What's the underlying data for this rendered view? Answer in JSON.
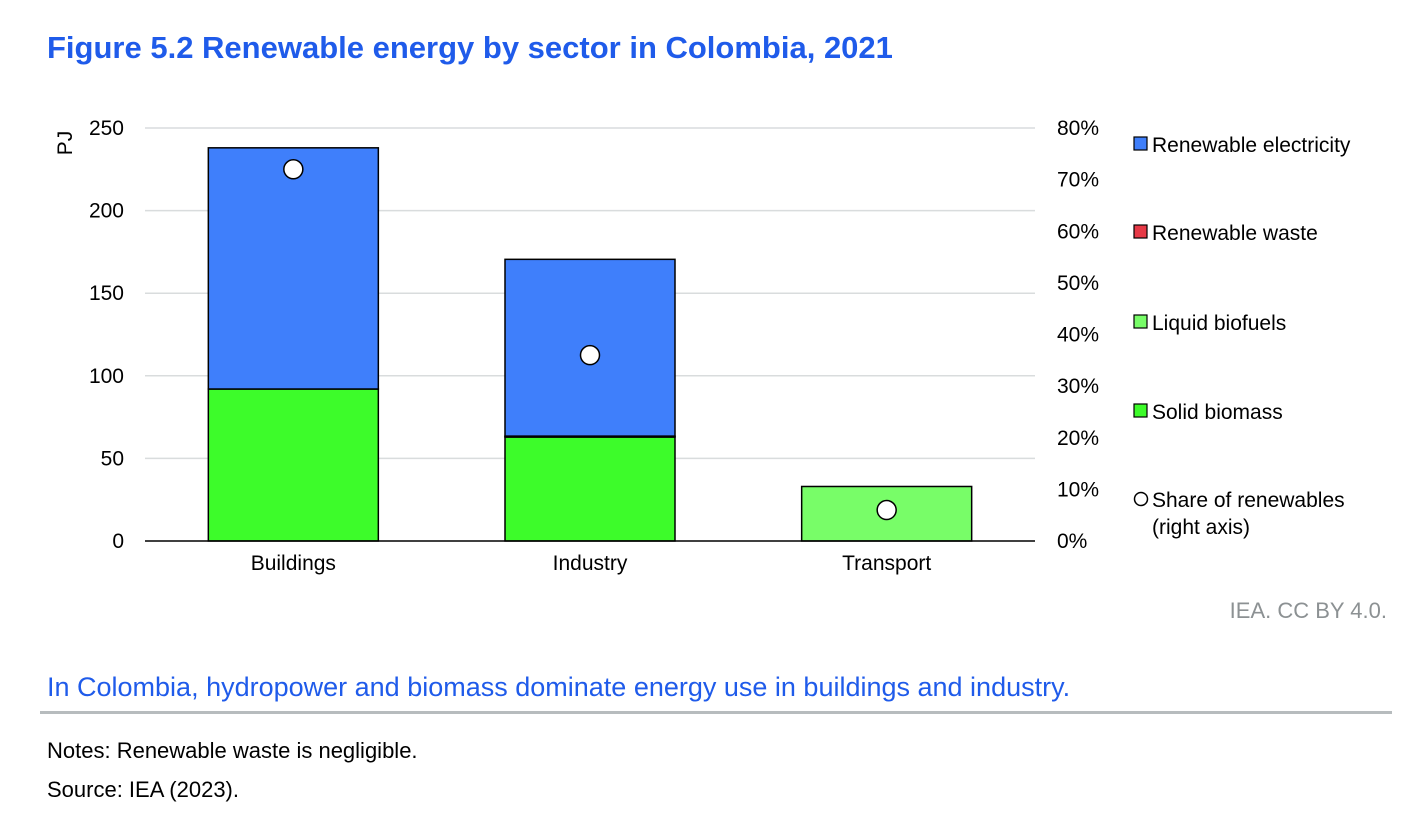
{
  "header": {
    "title": "Figure 5.2 Renewable energy by sector in Colombia, 2021"
  },
  "chart_data": {
    "type": "bar",
    "stacked": true,
    "categories": [
      "Buildings",
      "Industry",
      "Transport"
    ],
    "series": [
      {
        "name": "Solid biomass",
        "values": [
          92,
          63,
          0
        ],
        "color": "#3dfc2a"
      },
      {
        "name": "Liquid biofuels",
        "values": [
          0,
          0,
          33
        ],
        "color": "#78fd68"
      },
      {
        "name": "Renewable waste",
        "values": [
          0,
          0.5,
          0
        ],
        "color": "#e63946"
      },
      {
        "name": "Renewable electricity",
        "values": [
          146,
          107,
          0
        ],
        "color": "#3f7ffb"
      }
    ],
    "share_series": {
      "name": "Share of renewables (right axis)",
      "values": [
        72,
        36,
        6
      ],
      "axis": "right"
    },
    "legend": [
      {
        "label": "Renewable electricity",
        "color": "#3f7ffb",
        "marker": "square"
      },
      {
        "label": "Renewable waste",
        "color": "#e63946",
        "marker": "square"
      },
      {
        "label": "Liquid biofuels",
        "color": "#78fd68",
        "marker": "square"
      },
      {
        "label": "Solid biomass",
        "color": "#3dfc2a",
        "marker": "square"
      },
      {
        "label_lines": [
          "Share of renewables",
          "(right axis)"
        ],
        "color": "#ffffff",
        "marker": "circle"
      }
    ],
    "ylabel": "PJ",
    "ylim": [
      0,
      250
    ],
    "yticks": [
      "0",
      "50",
      "100",
      "150",
      "200",
      "250"
    ],
    "y2lim": [
      0,
      80
    ],
    "y2ticks": [
      "0%",
      "10%",
      "20%",
      "30%",
      "40%",
      "50%",
      "60%",
      "70%",
      "80%"
    ],
    "grid": true,
    "legend_position": "right"
  },
  "credit": "IEA. CC BY 4.0.",
  "caption": "In Colombia, hydropower and biomass dominate energy use in buildings and industry.",
  "notes": "Notes: Renewable waste is negligible.",
  "source": "Source: IEA (2023)."
}
